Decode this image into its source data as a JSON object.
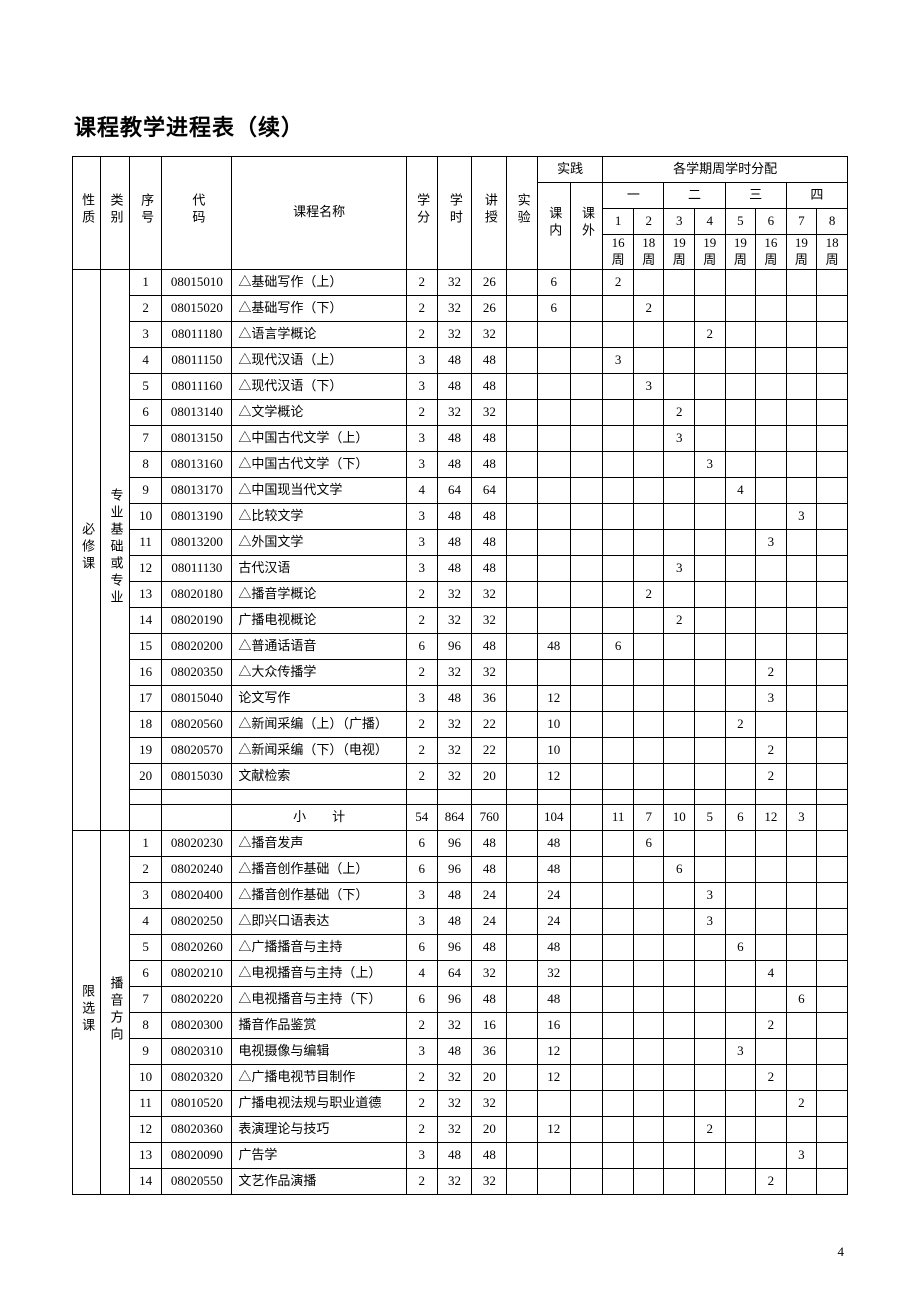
{
  "title": "课程教学进程表（续）",
  "page_number": "4",
  "headers": {
    "nature": "性质",
    "category": "类别",
    "index": "序号",
    "code": "代码",
    "course_name": "课程名称",
    "credit": "学分",
    "hours": "学时",
    "lecture": "讲授",
    "lab": "实验",
    "practice": "实践",
    "practice_in": "课内",
    "practice_out": "课外",
    "sem_dist": "各学期周学时分配",
    "year1": "一",
    "year2": "二",
    "year3": "三",
    "year4": "四",
    "s1": "1",
    "s2": "2",
    "s3": "3",
    "s4": "4",
    "s5": "5",
    "s6": "6",
    "s7": "7",
    "s8": "8",
    "w1": "16",
    "w2": "18",
    "w3": "19",
    "w4": "19",
    "w5": "19",
    "w6": "16",
    "w7": "19",
    "w8": "18",
    "wk": "周"
  },
  "groups": [
    {
      "nature": "必修课",
      "category": "专业基础或专业",
      "rows": [
        {
          "idx": "1",
          "code": "08015010",
          "name": "△基础写作（上）",
          "credit": "2",
          "hours": "32",
          "lecture": "26",
          "lab": "",
          "prac_in": "6",
          "prac_out": "",
          "sem": [
            "2",
            "",
            "",
            "",
            "",
            "",
            "",
            ""
          ]
        },
        {
          "idx": "2",
          "code": "08015020",
          "name": "△基础写作（下）",
          "credit": "2",
          "hours": "32",
          "lecture": "26",
          "lab": "",
          "prac_in": "6",
          "prac_out": "",
          "sem": [
            "",
            "2",
            "",
            "",
            "",
            "",
            "",
            ""
          ]
        },
        {
          "idx": "3",
          "code": "08011180",
          "name": "△语言学概论",
          "credit": "2",
          "hours": "32",
          "lecture": "32",
          "lab": "",
          "prac_in": "",
          "prac_out": "",
          "sem": [
            "",
            "",
            "",
            "2",
            "",
            "",
            "",
            ""
          ]
        },
        {
          "idx": "4",
          "code": "08011150",
          "name": "△现代汉语（上）",
          "credit": "3",
          "hours": "48",
          "lecture": "48",
          "lab": "",
          "prac_in": "",
          "prac_out": "",
          "sem": [
            "3",
            "",
            "",
            "",
            "",
            "",
            "",
            ""
          ]
        },
        {
          "idx": "5",
          "code": "08011160",
          "name": "△现代汉语（下）",
          "credit": "3",
          "hours": "48",
          "lecture": "48",
          "lab": "",
          "prac_in": "",
          "prac_out": "",
          "sem": [
            "",
            "3",
            "",
            "",
            "",
            "",
            "",
            ""
          ]
        },
        {
          "idx": "6",
          "code": "08013140",
          "name": "△文学概论",
          "credit": "2",
          "hours": "32",
          "lecture": "32",
          "lab": "",
          "prac_in": "",
          "prac_out": "",
          "sem": [
            "",
            "",
            "2",
            "",
            "",
            "",
            "",
            ""
          ]
        },
        {
          "idx": "7",
          "code": "08013150",
          "name": "△中国古代文学（上）",
          "credit": "3",
          "hours": "48",
          "lecture": "48",
          "lab": "",
          "prac_in": "",
          "prac_out": "",
          "sem": [
            "",
            "",
            "3",
            "",
            "",
            "",
            "",
            ""
          ]
        },
        {
          "idx": "8",
          "code": "08013160",
          "name": "△中国古代文学（下）",
          "credit": "3",
          "hours": "48",
          "lecture": "48",
          "lab": "",
          "prac_in": "",
          "prac_out": "",
          "sem": [
            "",
            "",
            "",
            "3",
            "",
            "",
            "",
            ""
          ]
        },
        {
          "idx": "9",
          "code": "08013170",
          "name": "△中国现当代文学",
          "credit": "4",
          "hours": "64",
          "lecture": "64",
          "lab": "",
          "prac_in": "",
          "prac_out": "",
          "sem": [
            "",
            "",
            "",
            "",
            "4",
            "",
            "",
            ""
          ]
        },
        {
          "idx": "10",
          "code": "08013190",
          "name": "△比较文学",
          "credit": "3",
          "hours": "48",
          "lecture": "48",
          "lab": "",
          "prac_in": "",
          "prac_out": "",
          "sem": [
            "",
            "",
            "",
            "",
            "",
            "",
            "3",
            ""
          ]
        },
        {
          "idx": "11",
          "code": "08013200",
          "name": "△外国文学",
          "credit": "3",
          "hours": "48",
          "lecture": "48",
          "lab": "",
          "prac_in": "",
          "prac_out": "",
          "sem": [
            "",
            "",
            "",
            "",
            "",
            "3",
            "",
            ""
          ]
        },
        {
          "idx": "12",
          "code": "08011130",
          "name": "古代汉语",
          "credit": "3",
          "hours": "48",
          "lecture": "48",
          "lab": "",
          "prac_in": "",
          "prac_out": "",
          "sem": [
            "",
            "",
            "3",
            "",
            "",
            "",
            "",
            ""
          ]
        },
        {
          "idx": "13",
          "code": "08020180",
          "name": "△播音学概论",
          "credit": "2",
          "hours": "32",
          "lecture": "32",
          "lab": "",
          "prac_in": "",
          "prac_out": "",
          "sem": [
            "",
            "2",
            "",
            "",
            "",
            "",
            "",
            ""
          ]
        },
        {
          "idx": "14",
          "code": "08020190",
          "name": "广播电视概论",
          "credit": "2",
          "hours": "32",
          "lecture": "32",
          "lab": "",
          "prac_in": "",
          "prac_out": "",
          "sem": [
            "",
            "",
            "2",
            "",
            "",
            "",
            "",
            ""
          ]
        },
        {
          "idx": "15",
          "code": "08020200",
          "name": "△普通话语音",
          "credit": "6",
          "hours": "96",
          "lecture": "48",
          "lab": "",
          "prac_in": "48",
          "prac_out": "",
          "sem": [
            "6",
            "",
            "",
            "",
            "",
            "",
            "",
            ""
          ]
        },
        {
          "idx": "16",
          "code": "08020350",
          "name": "△大众传播学",
          "credit": "2",
          "hours": "32",
          "lecture": "32",
          "lab": "",
          "prac_in": "",
          "prac_out": "",
          "sem": [
            "",
            "",
            "",
            "",
            "",
            "2",
            "",
            ""
          ]
        },
        {
          "idx": "17",
          "code": "08015040",
          "name": "论文写作",
          "credit": "3",
          "hours": "48",
          "lecture": "36",
          "lab": "",
          "prac_in": "12",
          "prac_out": "",
          "sem": [
            "",
            "",
            "",
            "",
            "",
            "3",
            "",
            ""
          ]
        },
        {
          "idx": "18",
          "code": "08020560",
          "name": "△新闻采编（上）（广播）",
          "credit": "2",
          "hours": "32",
          "lecture": "22",
          "lab": "",
          "prac_in": "10",
          "prac_out": "",
          "sem": [
            "",
            "",
            "",
            "",
            "2",
            "",
            "",
            ""
          ]
        },
        {
          "idx": "19",
          "code": "08020570",
          "name": "△新闻采编（下）（电视）",
          "credit": "2",
          "hours": "32",
          "lecture": "22",
          "lab": "",
          "prac_in": "10",
          "prac_out": "",
          "sem": [
            "",
            "",
            "",
            "",
            "",
            "2",
            "",
            ""
          ]
        },
        {
          "idx": "20",
          "code": "08015030",
          "name": "文献检索",
          "credit": "2",
          "hours": "32",
          "lecture": "20",
          "lab": "",
          "prac_in": "12",
          "prac_out": "",
          "sem": [
            "",
            "",
            "",
            "",
            "",
            "2",
            "",
            ""
          ]
        }
      ],
      "subtotal": {
        "label": "小　　计",
        "credit": "54",
        "hours": "864",
        "lecture": "760",
        "lab": "",
        "prac_in": "104",
        "prac_out": "",
        "sem": [
          "11",
          "7",
          "10",
          "5",
          "6",
          "12",
          "3",
          ""
        ]
      }
    },
    {
      "nature": "限选课",
      "category": "播音方向",
      "rows": [
        {
          "idx": "1",
          "code": "08020230",
          "name": "△播音发声",
          "credit": "6",
          "hours": "96",
          "lecture": "48",
          "lab": "",
          "prac_in": "48",
          "prac_out": "",
          "sem": [
            "",
            "6",
            "",
            "",
            "",
            "",
            "",
            ""
          ]
        },
        {
          "idx": "2",
          "code": "08020240",
          "name": "△播音创作基础（上）",
          "credit": "6",
          "hours": "96",
          "lecture": "48",
          "lab": "",
          "prac_in": "48",
          "prac_out": "",
          "sem": [
            "",
            "",
            "6",
            "",
            "",
            "",
            "",
            ""
          ]
        },
        {
          "idx": "3",
          "code": "08020400",
          "name": "△播音创作基础（下）",
          "credit": "3",
          "hours": "48",
          "lecture": "24",
          "lab": "",
          "prac_in": "24",
          "prac_out": "",
          "sem": [
            "",
            "",
            "",
            "3",
            "",
            "",
            "",
            ""
          ]
        },
        {
          "idx": "4",
          "code": "08020250",
          "name": "△即兴口语表达",
          "credit": "3",
          "hours": "48",
          "lecture": "24",
          "lab": "",
          "prac_in": "24",
          "prac_out": "",
          "sem": [
            "",
            "",
            "",
            "3",
            "",
            "",
            "",
            ""
          ]
        },
        {
          "idx": "5",
          "code": "08020260",
          "name": "△广播播音与主持",
          "credit": "6",
          "hours": "96",
          "lecture": "48",
          "lab": "",
          "prac_in": "48",
          "prac_out": "",
          "sem": [
            "",
            "",
            "",
            "",
            "6",
            "",
            "",
            ""
          ]
        },
        {
          "idx": "6",
          "code": "08020210",
          "name": "△电视播音与主持（上）",
          "credit": "4",
          "hours": "64",
          "lecture": "32",
          "lab": "",
          "prac_in": "32",
          "prac_out": "",
          "sem": [
            "",
            "",
            "",
            "",
            "",
            "4",
            "",
            ""
          ]
        },
        {
          "idx": "7",
          "code": "08020220",
          "name": "△电视播音与主持（下）",
          "credit": "6",
          "hours": "96",
          "lecture": "48",
          "lab": "",
          "prac_in": "48",
          "prac_out": "",
          "sem": [
            "",
            "",
            "",
            "",
            "",
            "",
            "6",
            ""
          ]
        },
        {
          "idx": "8",
          "code": "08020300",
          "name": "播音作品鉴赏",
          "credit": "2",
          "hours": "32",
          "lecture": "16",
          "lab": "",
          "prac_in": "16",
          "prac_out": "",
          "sem": [
            "",
            "",
            "",
            "",
            "",
            "2",
            "",
            ""
          ]
        },
        {
          "idx": "9",
          "code": "08020310",
          "name": "电视摄像与编辑",
          "credit": "3",
          "hours": "48",
          "lecture": "36",
          "lab": "",
          "prac_in": "12",
          "prac_out": "",
          "sem": [
            "",
            "",
            "",
            "",
            "3",
            "",
            "",
            ""
          ]
        },
        {
          "idx": "10",
          "code": "08020320",
          "name": "△广播电视节目制作",
          "credit": "2",
          "hours": "32",
          "lecture": "20",
          "lab": "",
          "prac_in": "12",
          "prac_out": "",
          "sem": [
            "",
            "",
            "",
            "",
            "",
            "2",
            "",
            ""
          ]
        },
        {
          "idx": "11",
          "code": "08010520",
          "name": "广播电视法规与职业道德",
          "credit": "2",
          "hours": "32",
          "lecture": "32",
          "lab": "",
          "prac_in": "",
          "prac_out": "",
          "sem": [
            "",
            "",
            "",
            "",
            "",
            "",
            "2",
            ""
          ]
        },
        {
          "idx": "12",
          "code": "08020360",
          "name": "表演理论与技巧",
          "credit": "2",
          "hours": "32",
          "lecture": "20",
          "lab": "",
          "prac_in": "12",
          "prac_out": "",
          "sem": [
            "",
            "",
            "",
            "2",
            "",
            "",
            "",
            ""
          ]
        },
        {
          "idx": "13",
          "code": "08020090",
          "name": "广告学",
          "credit": "3",
          "hours": "48",
          "lecture": "48",
          "lab": "",
          "prac_in": "",
          "prac_out": "",
          "sem": [
            "",
            "",
            "",
            "",
            "",
            "",
            "3",
            ""
          ]
        },
        {
          "idx": "14",
          "code": "08020550",
          "name": "文艺作品演播",
          "credit": "2",
          "hours": "32",
          "lecture": "32",
          "lab": "",
          "prac_in": "",
          "prac_out": "",
          "sem": [
            "",
            "",
            "",
            "",
            "",
            "2",
            "",
            ""
          ]
        }
      ]
    }
  ]
}
